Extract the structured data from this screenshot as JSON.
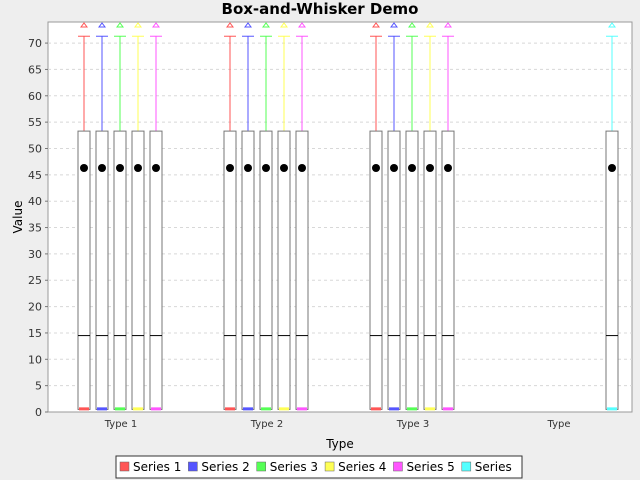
{
  "chart_data": {
    "type": "box",
    "title": "Box-and-Whisker Demo",
    "xlabel": "Type",
    "ylabel": "Value",
    "ylim": [
      0,
      74
    ],
    "yticks": [
      0,
      5,
      10,
      15,
      20,
      25,
      30,
      35,
      40,
      45,
      50,
      55,
      60,
      65,
      70
    ],
    "grid": true,
    "legend_position": "bottom",
    "categories": [
      "Type 1",
      "Type 2",
      "Type 3",
      "Type"
    ],
    "series": [
      {
        "name": "Series 1",
        "color": "#ff5555",
        "present": [
          true,
          true,
          true,
          false
        ]
      },
      {
        "name": "Series 2",
        "color": "#5555ff",
        "present": [
          true,
          true,
          true,
          false
        ]
      },
      {
        "name": "Series 3",
        "color": "#55ff55",
        "present": [
          true,
          true,
          true,
          false
        ]
      },
      {
        "name": "Series 4",
        "color": "#ffff55",
        "present": [
          true,
          true,
          true,
          false
        ]
      },
      {
        "name": "Series 5",
        "color": "#ff55ff",
        "present": [
          true,
          true,
          true,
          false
        ]
      },
      {
        "name": "Series",
        "color": "#55ffff",
        "present": [
          false,
          false,
          false,
          true
        ]
      }
    ],
    "box_stats": {
      "min": 0.5,
      "q1": 0.5,
      "median": 14.5,
      "mean": 46.3,
      "q3": 53.3,
      "max": 71.3,
      "far_outlier": 74.0
    }
  }
}
